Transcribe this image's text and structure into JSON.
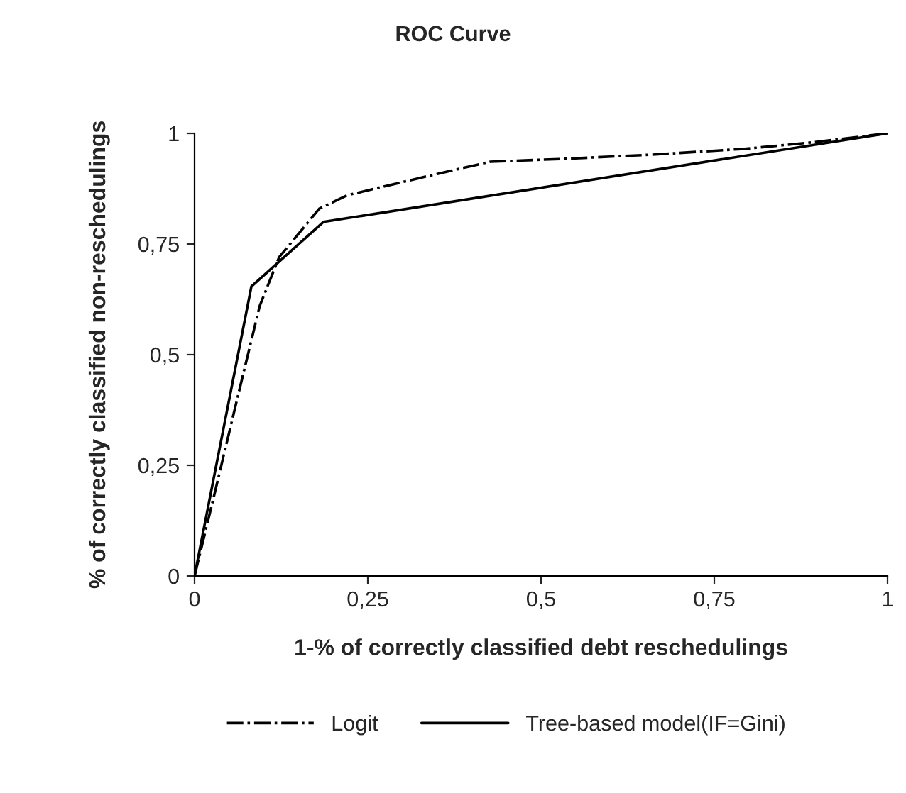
{
  "chart_data": {
    "type": "line",
    "title": "ROC Curve",
    "xlabel": "1-% of correctly classified debt reschedulings",
    "ylabel": "% of correctly classified non-reschedulings",
    "series": [
      {
        "name": "Logit",
        "color": "#000000",
        "line_style": "dashdot",
        "x": [
          0,
          0.028,
          0.06,
          0.094,
          0.122,
          0.18,
          0.22,
          0.327,
          0.427,
          0.527,
          0.661,
          0.794,
          0.894,
          1
        ],
        "values": [
          0,
          0.18,
          0.39,
          0.61,
          0.72,
          0.83,
          0.86,
          0.9,
          0.936,
          0.942,
          0.952,
          0.965,
          0.98,
          1
        ]
      },
      {
        "name": "Tree-based model(IF=Gini)",
        "color": "#000000",
        "line_style": "solid",
        "x": [
          0,
          0.082,
          0.186,
          1
        ],
        "values": [
          0,
          0.654,
          0.8,
          1
        ]
      }
    ],
    "xlim": [
      0,
      1
    ],
    "ylim": [
      0,
      1
    ],
    "xticks": [
      0,
      {
        "value": 0.25,
        "label": "0,25"
      },
      {
        "value": 0.5,
        "label": "0,5"
      },
      {
        "value": 0.75,
        "label": "0,75"
      },
      1
    ],
    "yticks": [
      0,
      {
        "value": 0.25,
        "label": "0,25"
      },
      {
        "value": 0.5,
        "label": "0,5"
      },
      {
        "value": 0.75,
        "label": "0,75"
      },
      1
    ],
    "grid": false,
    "legend": "bottom",
    "marker": "none"
  }
}
